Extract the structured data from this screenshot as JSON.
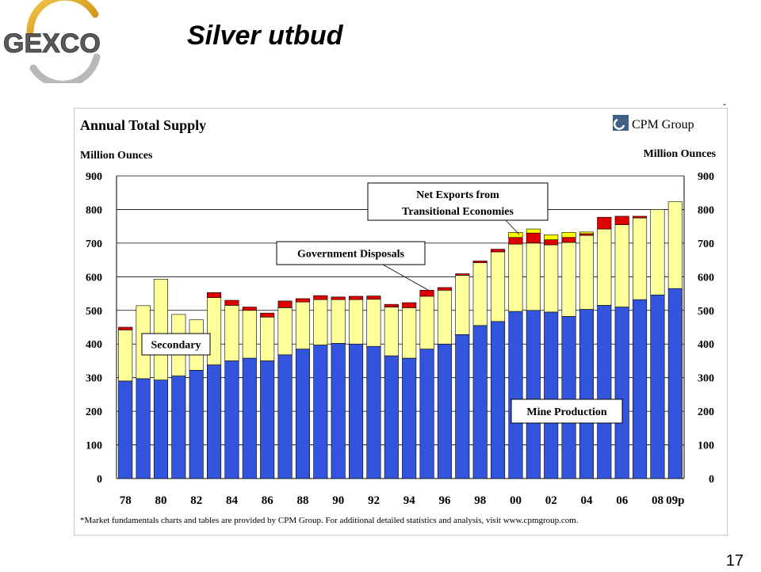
{
  "slide": {
    "logo_text": "GEXCO",
    "title": "Silver utbud",
    "dash": "-",
    "page_number": "17"
  },
  "chart_data": {
    "type": "bar",
    "stacked": true,
    "title": "Annual Total Supply",
    "source_logo": "CPM Group",
    "ylabel_left": "Million Ounces",
    "ylabel_right": "Million Ounces",
    "ylim": [
      0,
      900
    ],
    "yticks": [
      0,
      100,
      200,
      300,
      400,
      500,
      600,
      700,
      800,
      900
    ],
    "x_tick_labels": [
      "78",
      "80",
      "82",
      "84",
      "86",
      "88",
      "90",
      "92",
      "94",
      "96",
      "98",
      "00",
      "02",
      "04",
      "06",
      "08",
      "09p"
    ],
    "categories": [
      "78",
      "79",
      "80",
      "81",
      "82",
      "83",
      "84",
      "85",
      "86",
      "87",
      "88",
      "89",
      "90",
      "91",
      "92",
      "93",
      "94",
      "95",
      "96",
      "97",
      "98",
      "99",
      "00",
      "01",
      "02",
      "03",
      "04",
      "05",
      "06",
      "07",
      "08",
      "09p"
    ],
    "series": [
      {
        "name": "Mine Production",
        "color": "#3355dd",
        "values": [
          290,
          297,
          293,
          305,
          322,
          338,
          350,
          358,
          350,
          368,
          385,
          397,
          402,
          400,
          393,
          365,
          358,
          385,
          400,
          428,
          455,
          467,
          497,
          500,
          495,
          482,
          503,
          515,
          510,
          532,
          546,
          565
        ]
      },
      {
        "name": "Secondary",
        "color": "#ffff99",
        "values": [
          152,
          217,
          300,
          183,
          150,
          200,
          165,
          142,
          130,
          140,
          140,
          135,
          130,
          132,
          140,
          145,
          150,
          157,
          160,
          176,
          187,
          207,
          200,
          200,
          200,
          220,
          220,
          227,
          245,
          243,
          254,
          258
        ]
      },
      {
        "name": "Government Disposals",
        "color": "#dd0000",
        "values": [
          8,
          0,
          0,
          0,
          0,
          15,
          15,
          10,
          12,
          20,
          10,
          12,
          8,
          10,
          10,
          8,
          15,
          18,
          8,
          5,
          5,
          8,
          20,
          30,
          15,
          15,
          5,
          35,
          25,
          5,
          0,
          0
        ]
      },
      {
        "name": "Net Exports from Transitional Economies",
        "color": "#ffff00",
        "values": [
          0,
          0,
          0,
          0,
          0,
          0,
          0,
          0,
          0,
          0,
          0,
          0,
          0,
          0,
          0,
          0,
          0,
          0,
          0,
          0,
          0,
          0,
          15,
          12,
          15,
          15,
          5,
          0,
          0,
          0,
          0,
          0
        ]
      }
    ],
    "annotations": [
      "Net Exports from Transitional Economies",
      "Government Disposals",
      "Secondary",
      "Mine Production"
    ],
    "footnote": "*Market fundamentals charts and tables are provided by CPM Group. For additional detailed statistics and analysis, visit www.cpmgroup.com.",
    "grid": true
  }
}
